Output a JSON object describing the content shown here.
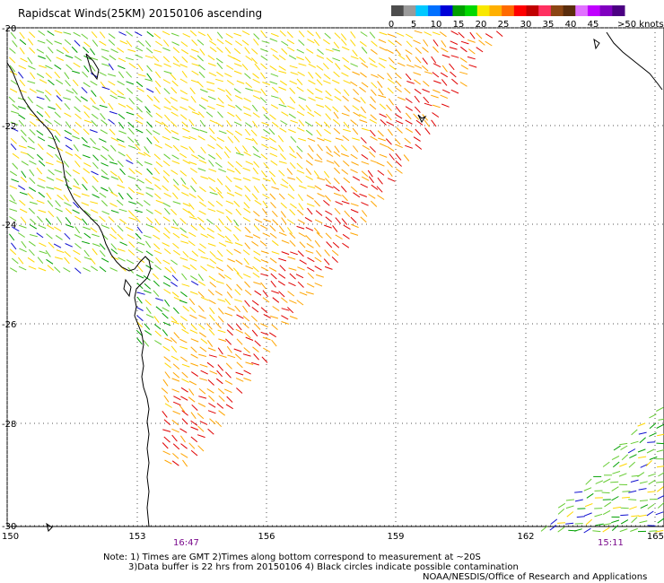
{
  "title": "Rapidscat Winds(25KM) 20150106 ascending",
  "legend": {
    "unit_label": ">50 knots",
    "ticks": [
      "0",
      "5",
      "10",
      "15",
      "20",
      "25",
      "30",
      "35",
      "40",
      "45"
    ],
    "colors": [
      "#4d4d4d",
      "#9a9a9a",
      "#00c8ff",
      "#0070ff",
      "#0000d8",
      "#00a000",
      "#00d800",
      "#f8e800",
      "#ffb000",
      "#ff6a00",
      "#ff0000",
      "#c00000",
      "#ff3060",
      "#8b4513",
      "#5a2d0c",
      "#e070ff",
      "#c000ff",
      "#8000c0",
      "#4b0082"
    ]
  },
  "axes": {
    "lon_labels": [
      "150",
      "153",
      "156",
      "159",
      "162",
      "165"
    ],
    "lat_labels": [
      "-20",
      "-22",
      "-24",
      "-26",
      "-28",
      "-30"
    ]
  },
  "swath_times": [
    "16:47",
    "15:11"
  ],
  "notes": {
    "line1": "Note: 1) Times are GMT 2)Times along bottom correspond to measurement at ~20S",
    "line2": "3)Data buffer is 22 hrs from 20150106 4) Black circles indicate possible contamination",
    "line3": "NOAA/NESDIS/Office of Research and Applications"
  },
  "wind_colors": {
    "light_green": "#66cc33",
    "green": "#00a000",
    "yellow": "#ffd700",
    "orange": "#ffa500",
    "red": "#e00000",
    "blue": "#1010d0"
  }
}
